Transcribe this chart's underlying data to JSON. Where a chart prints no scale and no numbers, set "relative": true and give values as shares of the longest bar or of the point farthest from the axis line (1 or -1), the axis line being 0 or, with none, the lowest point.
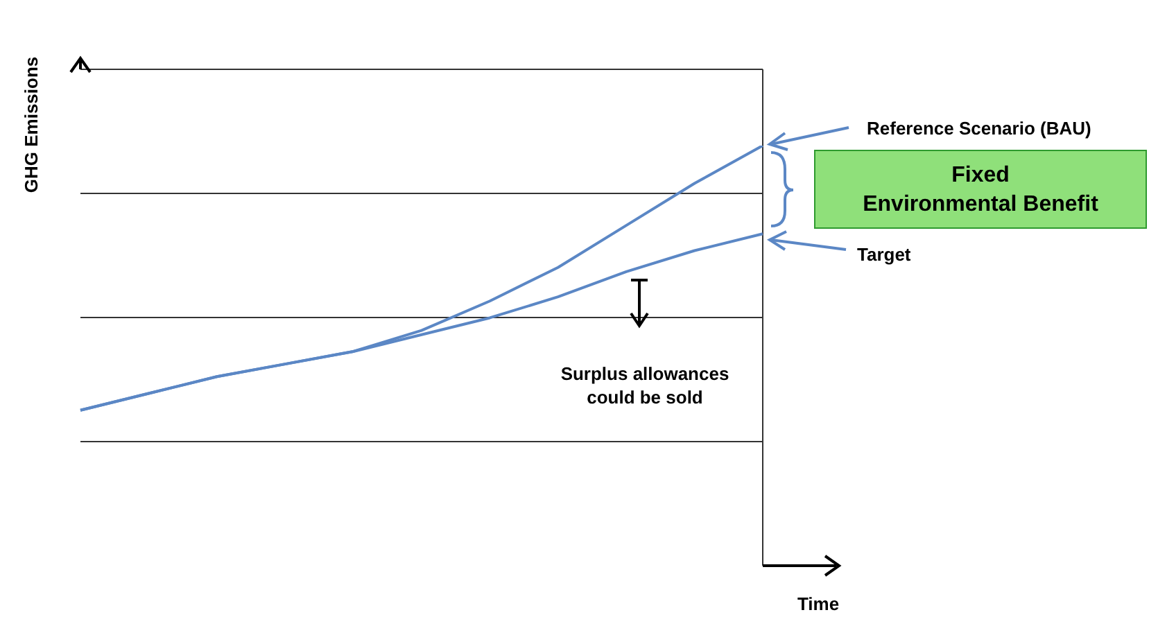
{
  "chart_data": {
    "type": "line",
    "relative": true,
    "xlabel": "Time",
    "ylabel": "GHG Emissions",
    "categories": [
      null,
      null,
      null,
      null,
      null,
      null,
      null,
      null,
      null,
      null,
      null
    ],
    "series": [
      {
        "name": "Reference Scenario (BAU)",
        "color": "#5b87c5",
        "values": [
          0.37,
          0.41,
          0.45,
          0.48,
          0.51,
          0.56,
          0.63,
          0.71,
          0.81,
          0.91,
          1
        ]
      },
      {
        "name": "Target",
        "color": "#5b87c5",
        "values": [
          0.37,
          0.41,
          0.45,
          0.48,
          0.51,
          0.55,
          0.59,
          0.64,
          0.7,
          0.75,
          0.79
        ]
      }
    ],
    "annotations": [
      "Fixed Environmental Benefit",
      "Surplus allowances could be sold"
    ],
    "grid": true,
    "legend": "right",
    "marker": "none",
    "line_style": "solid"
  }
}
